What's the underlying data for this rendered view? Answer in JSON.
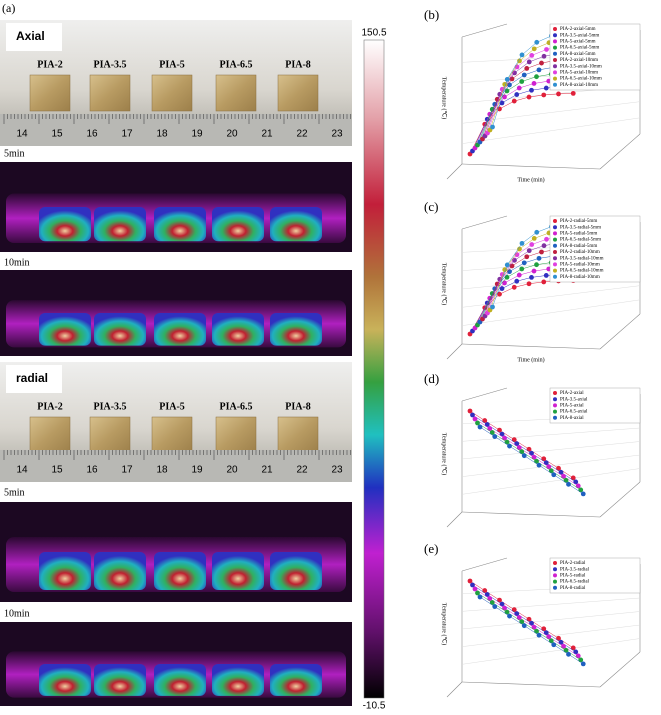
{
  "panel_a": {
    "label": "(a)",
    "axial": {
      "tag": "Axial",
      "samples": [
        "PIA-2",
        "PIA-3.5",
        "PIA-5",
        "PIA-6.5",
        "PIA-8"
      ],
      "ruler": [
        "14",
        "15",
        "16",
        "17",
        "18",
        "19",
        "20",
        "21",
        "22",
        "23"
      ]
    },
    "radial": {
      "tag": "radial",
      "samples": [
        "PIA-2",
        "PIA-3.5",
        "PIA-5",
        "PIA-6.5",
        "PIA-8"
      ],
      "ruler": [
        "14",
        "15",
        "16",
        "17",
        "18",
        "19",
        "20",
        "21",
        "22",
        "23"
      ]
    },
    "times": [
      "5min",
      "10min"
    ],
    "colorbar": {
      "max": "150.5",
      "min": "-10.5"
    }
  },
  "panel_b": {
    "label": "(b)",
    "z_label": "Temperature (℃)",
    "x_label": "Time (min)",
    "legend": [
      "PIA-2-axial-5mm",
      "PIA-3.5-axial-5mm",
      "PIA-5-axial-5mm",
      "PIA-6.5-axial-5mm",
      "PIA-8-axial-5mm",
      "PIA-2-axial-10mm",
      "PIA-3.5-axial-10mm",
      "PIA-5-axial-10mm",
      "PIA-6.5-axial-10mm",
      "PIA-8-axial-10mm"
    ]
  },
  "panel_c": {
    "label": "(c)",
    "z_label": "Temperature (℃)",
    "x_label": "Time (min)",
    "legend": [
      "PIA-2-radial-5mm",
      "PIA-3.5-radial-5mm",
      "PIA-5-radial-5mm",
      "PIA-6.5-radial-5mm",
      "PIA-8-radial-5mm",
      "PIA-2-radial-10mm",
      "PIA-3.5-radial-10mm",
      "PIA-5-radial-10mm",
      "PIA-6.5-radial-10mm",
      "PIA-8-radial-10mm"
    ]
  },
  "panel_d": {
    "label": "(d)",
    "z_label": "Temperature (℃)",
    "legend": [
      "PIA-2-axial",
      "PIA-3.5-axial",
      "PIA-5-axial",
      "PIA-6.5-axial",
      "PIA-8-axial"
    ]
  },
  "panel_e": {
    "label": "(e)",
    "z_label": "Temperature (℃)",
    "legend": [
      "PIA-2-radial",
      "PIA-3.5-radial",
      "PIA-5-radial",
      "PIA-6.5-radial",
      "PIA-8-radial"
    ]
  }
}
